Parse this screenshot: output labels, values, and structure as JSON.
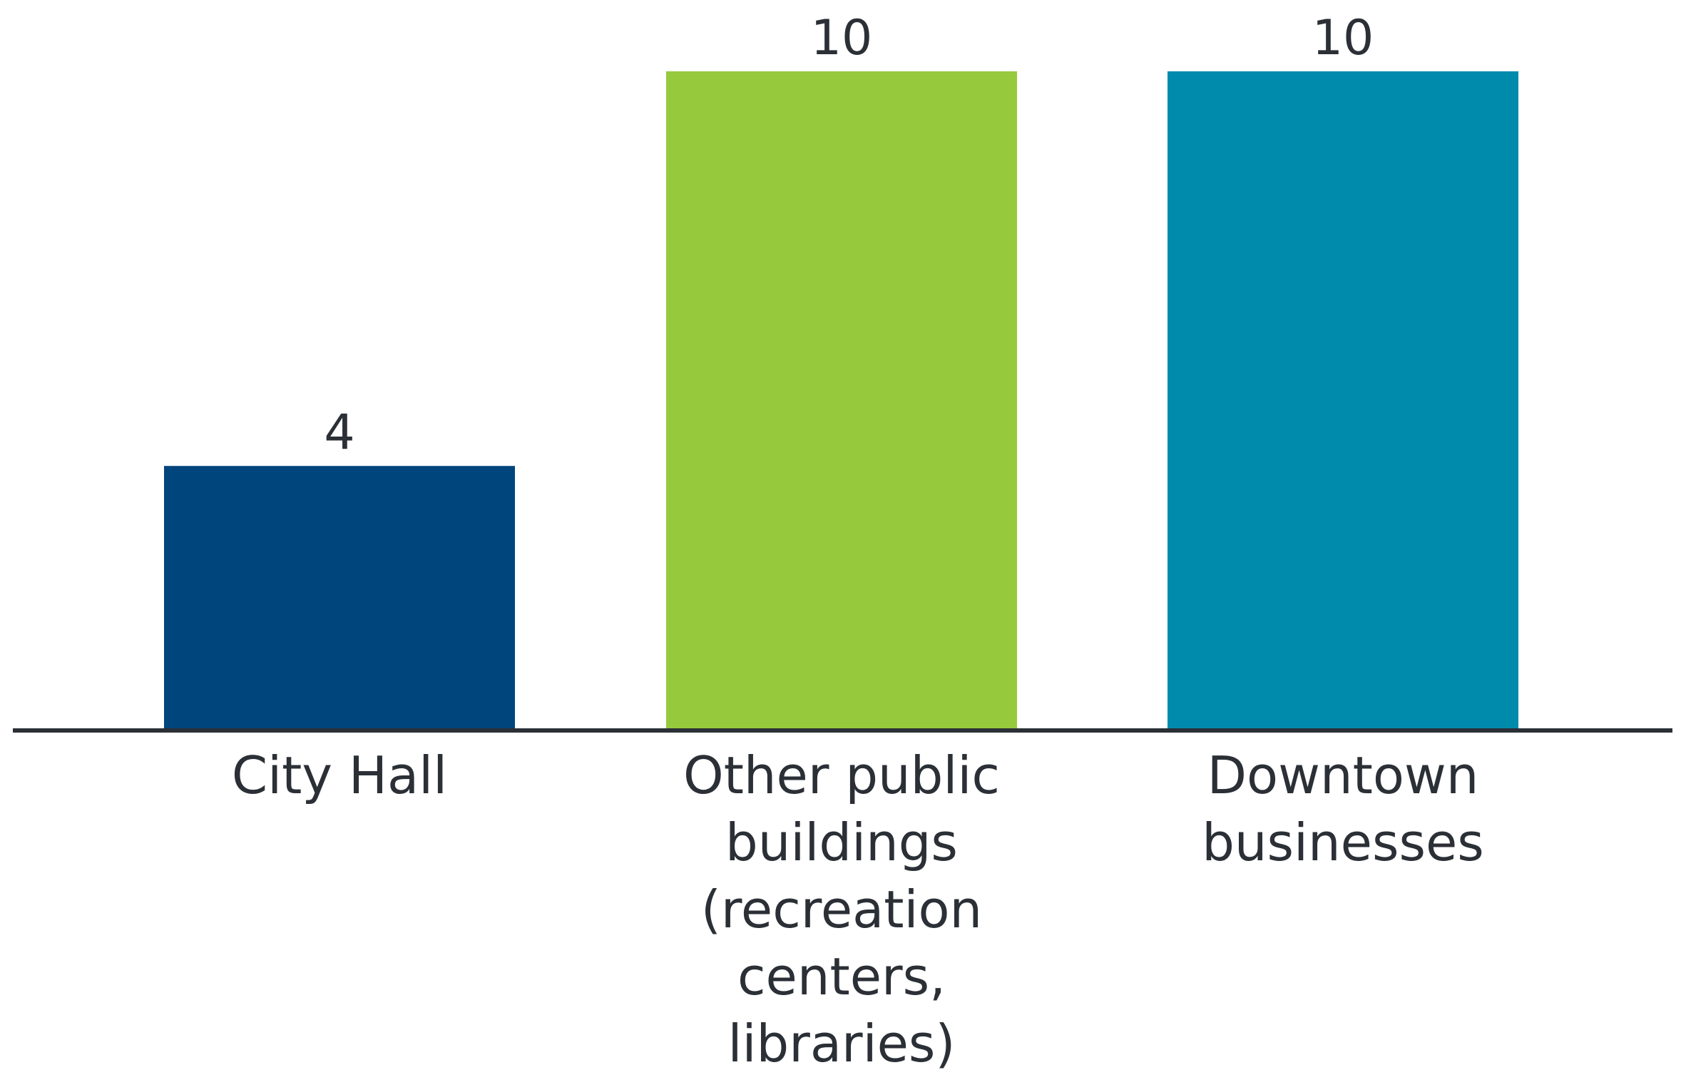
{
  "chart_data": {
    "type": "bar",
    "categories": [
      "City Hall",
      "Other public buildings (recreation centers, libraries)",
      "Downtown businesses"
    ],
    "category_lines": [
      [
        "City Hall"
      ],
      [
        "Other public",
        "buildings",
        "(recreation",
        "centers,",
        "libraries)"
      ],
      [
        "Downtown",
        "businesses"
      ]
    ],
    "values": [
      4,
      10,
      10
    ],
    "data_labels": [
      "4",
      "10",
      "10"
    ],
    "colors": [
      "#00457c",
      "#97c93d",
      "#008bad"
    ],
    "axis_color": "#2b2f36",
    "ylim": [
      0,
      10
    ],
    "grid": false,
    "legend": "none"
  }
}
